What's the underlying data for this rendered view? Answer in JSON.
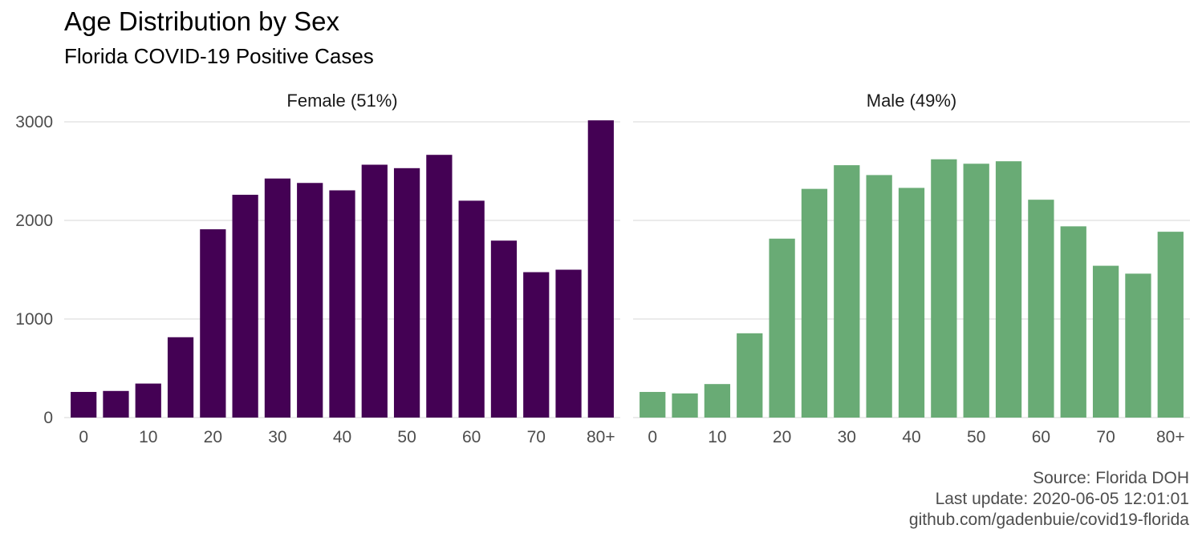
{
  "chart_data": {
    "type": "bar",
    "title": "Age Distribution by Sex",
    "subtitle": "Florida COVID-19 Positive Cases",
    "caption": [
      "Source: Florida DOH",
      "Last update: 2020-06-05 12:01:01",
      "github.com/gadenbuie/covid19-florida"
    ],
    "xlabel": "",
    "ylabel": "",
    "ylim": [
      0,
      3000
    ],
    "yticks": [
      0,
      1000,
      2000,
      3000
    ],
    "xtick_labels": [
      "0",
      "10",
      "20",
      "30",
      "40",
      "50",
      "60",
      "70",
      "80+"
    ],
    "categories": [
      "0",
      "5",
      "10",
      "15",
      "20",
      "25",
      "30",
      "35",
      "40",
      "45",
      "50",
      "55",
      "60",
      "65",
      "70",
      "75",
      "80+"
    ],
    "grid": true,
    "legend": "none",
    "panels": [
      {
        "name": "Female (51%)",
        "color": "#440154",
        "values": [
          260,
          270,
          345,
          815,
          1910,
          2260,
          2425,
          2380,
          2305,
          2565,
          2530,
          2665,
          2200,
          1795,
          1475,
          1500,
          3015
        ]
      },
      {
        "name": "Male (49%)",
        "color": "#69AB75",
        "values": [
          260,
          245,
          340,
          855,
          1815,
          2320,
          2560,
          2460,
          2330,
          2620,
          2575,
          2600,
          2210,
          1940,
          1540,
          1460,
          1885
        ]
      }
    ]
  }
}
